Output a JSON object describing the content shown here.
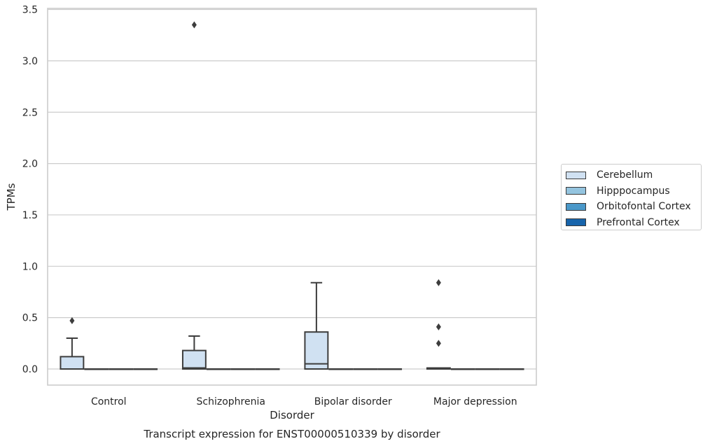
{
  "chart_data": {
    "type": "box",
    "title": "Transcript expression for ENST00000510339 by disorder",
    "xlabel": "Disorder",
    "ylabel": "TPMs",
    "categories": [
      "Control",
      "Schizophrenia",
      "Bipolar disorder",
      "Major depression"
    ],
    "ylim": [
      -0.16,
      3.53
    ],
    "yticks": [
      0.0,
      0.5,
      1.0,
      1.5,
      2.0,
      2.5,
      3.0,
      3.5
    ],
    "ytick_labels": [
      "0.0",
      "0.5",
      "1.0",
      "1.5",
      "2.0",
      "2.5",
      "3.0",
      "3.5"
    ],
    "grid": "horizontal",
    "legend_position": "right",
    "series": [
      {
        "name": "Cerebellum",
        "color": "#d0e1f2",
        "boxes": [
          {
            "q1": 0.0,
            "median": 0.0,
            "q3": 0.12,
            "whisker_low": 0.0,
            "whisker_high": 0.3,
            "outliers": [
              0.47
            ]
          },
          {
            "q1": 0.0,
            "median": 0.01,
            "q3": 0.18,
            "whisker_low": 0.0,
            "whisker_high": 0.32,
            "outliers": [
              3.35
            ]
          },
          {
            "q1": 0.0,
            "median": 0.05,
            "q3": 0.36,
            "whisker_low": 0.0,
            "whisker_high": 0.84,
            "outliers": []
          },
          {
            "q1": 0.0,
            "median": 0.0,
            "q3": 0.01,
            "whisker_low": 0.0,
            "whisker_high": 0.01,
            "outliers": [
              0.25,
              0.41,
              0.84
            ]
          }
        ]
      },
      {
        "name": "Hipppocampus",
        "color": "#94c4df",
        "boxes": [
          {
            "q1": 0.0,
            "median": 0.0,
            "q3": 0.0,
            "whisker_low": 0.0,
            "whisker_high": 0.0,
            "outliers": []
          },
          {
            "q1": 0.0,
            "median": 0.0,
            "q3": 0.0,
            "whisker_low": 0.0,
            "whisker_high": 0.0,
            "outliers": []
          },
          {
            "q1": 0.0,
            "median": 0.0,
            "q3": 0.0,
            "whisker_low": 0.0,
            "whisker_high": 0.0,
            "outliers": []
          },
          {
            "q1": 0.0,
            "median": 0.0,
            "q3": 0.0,
            "whisker_low": 0.0,
            "whisker_high": 0.0,
            "outliers": []
          }
        ]
      },
      {
        "name": "Orbitofontal Cortex",
        "color": "#4a98c9",
        "boxes": [
          {
            "q1": 0.0,
            "median": 0.0,
            "q3": 0.0,
            "whisker_low": 0.0,
            "whisker_high": 0.0,
            "outliers": []
          },
          {
            "q1": 0.0,
            "median": 0.0,
            "q3": 0.0,
            "whisker_low": 0.0,
            "whisker_high": 0.0,
            "outliers": []
          },
          {
            "q1": 0.0,
            "median": 0.0,
            "q3": 0.0,
            "whisker_low": 0.0,
            "whisker_high": 0.0,
            "outliers": []
          },
          {
            "q1": 0.0,
            "median": 0.0,
            "q3": 0.0,
            "whisker_low": 0.0,
            "whisker_high": 0.0,
            "outliers": []
          }
        ]
      },
      {
        "name": "Prefrontal Cortex",
        "color": "#1764ab",
        "boxes": [
          {
            "q1": 0.0,
            "median": 0.0,
            "q3": 0.0,
            "whisker_low": 0.0,
            "whisker_high": 0.0,
            "outliers": []
          },
          {
            "q1": 0.0,
            "median": 0.0,
            "q3": 0.0,
            "whisker_low": 0.0,
            "whisker_high": 0.0,
            "outliers": []
          },
          {
            "q1": 0.0,
            "median": 0.0,
            "q3": 0.0,
            "whisker_low": 0.0,
            "whisker_high": 0.0,
            "outliers": []
          },
          {
            "q1": 0.0,
            "median": 0.0,
            "q3": 0.0,
            "whisker_low": 0.0,
            "whisker_high": 0.0,
            "outliers": []
          }
        ]
      }
    ]
  }
}
